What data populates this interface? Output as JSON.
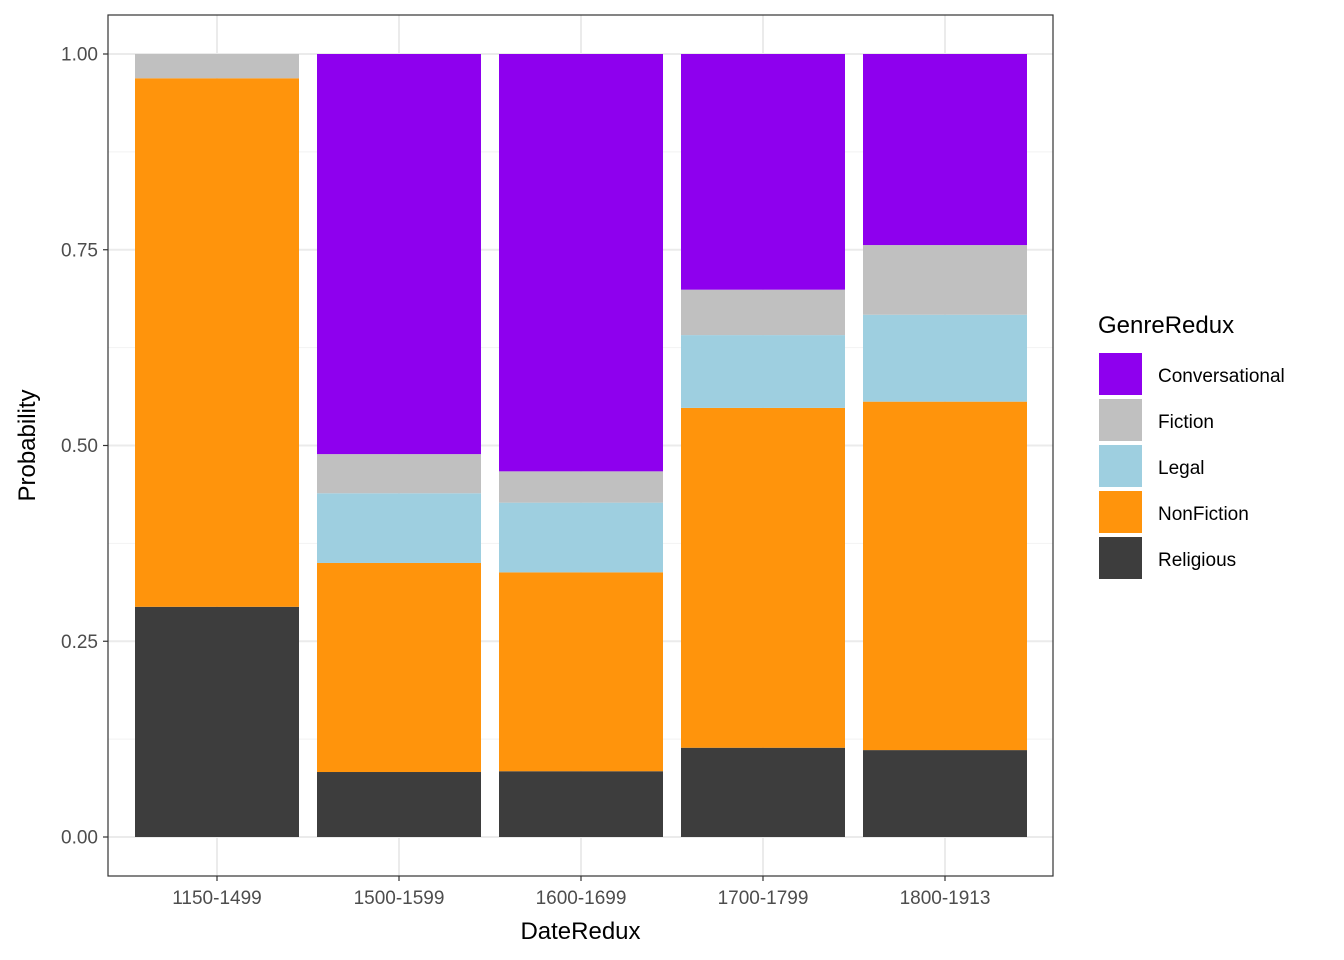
{
  "chart_data": {
    "type": "bar",
    "stacked": true,
    "title": "",
    "xlabel": "DateRedux",
    "ylabel": "Probability",
    "ylim": [
      0,
      1
    ],
    "yticks": [
      "0.00",
      "0.25",
      "0.50",
      "0.75",
      "1.00"
    ],
    "ytick_values": [
      0,
      0.25,
      0.5,
      0.75,
      1
    ],
    "grid": true,
    "categories": [
      "1150-1499",
      "1500-1599",
      "1600-1699",
      "1700-1799",
      "1800-1913"
    ],
    "legend": {
      "title": "GenreRedux",
      "position": "right"
    },
    "series": [
      {
        "name": "Conversational",
        "color": "#8E00EE",
        "values": [
          0.0,
          0.511,
          0.533,
          0.301,
          0.244
        ]
      },
      {
        "name": "Fiction",
        "color": "#C0C0C0",
        "values": [
          0.031,
          0.05,
          0.04,
          0.058,
          0.089
        ]
      },
      {
        "name": "Legal",
        "color": "#9ECFE0",
        "values": [
          0.0,
          0.089,
          0.089,
          0.093,
          0.111
        ]
      },
      {
        "name": "NonFiction",
        "color": "#FF940C",
        "values": [
          0.675,
          0.267,
          0.254,
          0.434,
          0.445
        ]
      },
      {
        "name": "Religious",
        "color": "#3D3D3D",
        "values": [
          0.294,
          0.083,
          0.084,
          0.114,
          0.111
        ]
      }
    ]
  }
}
